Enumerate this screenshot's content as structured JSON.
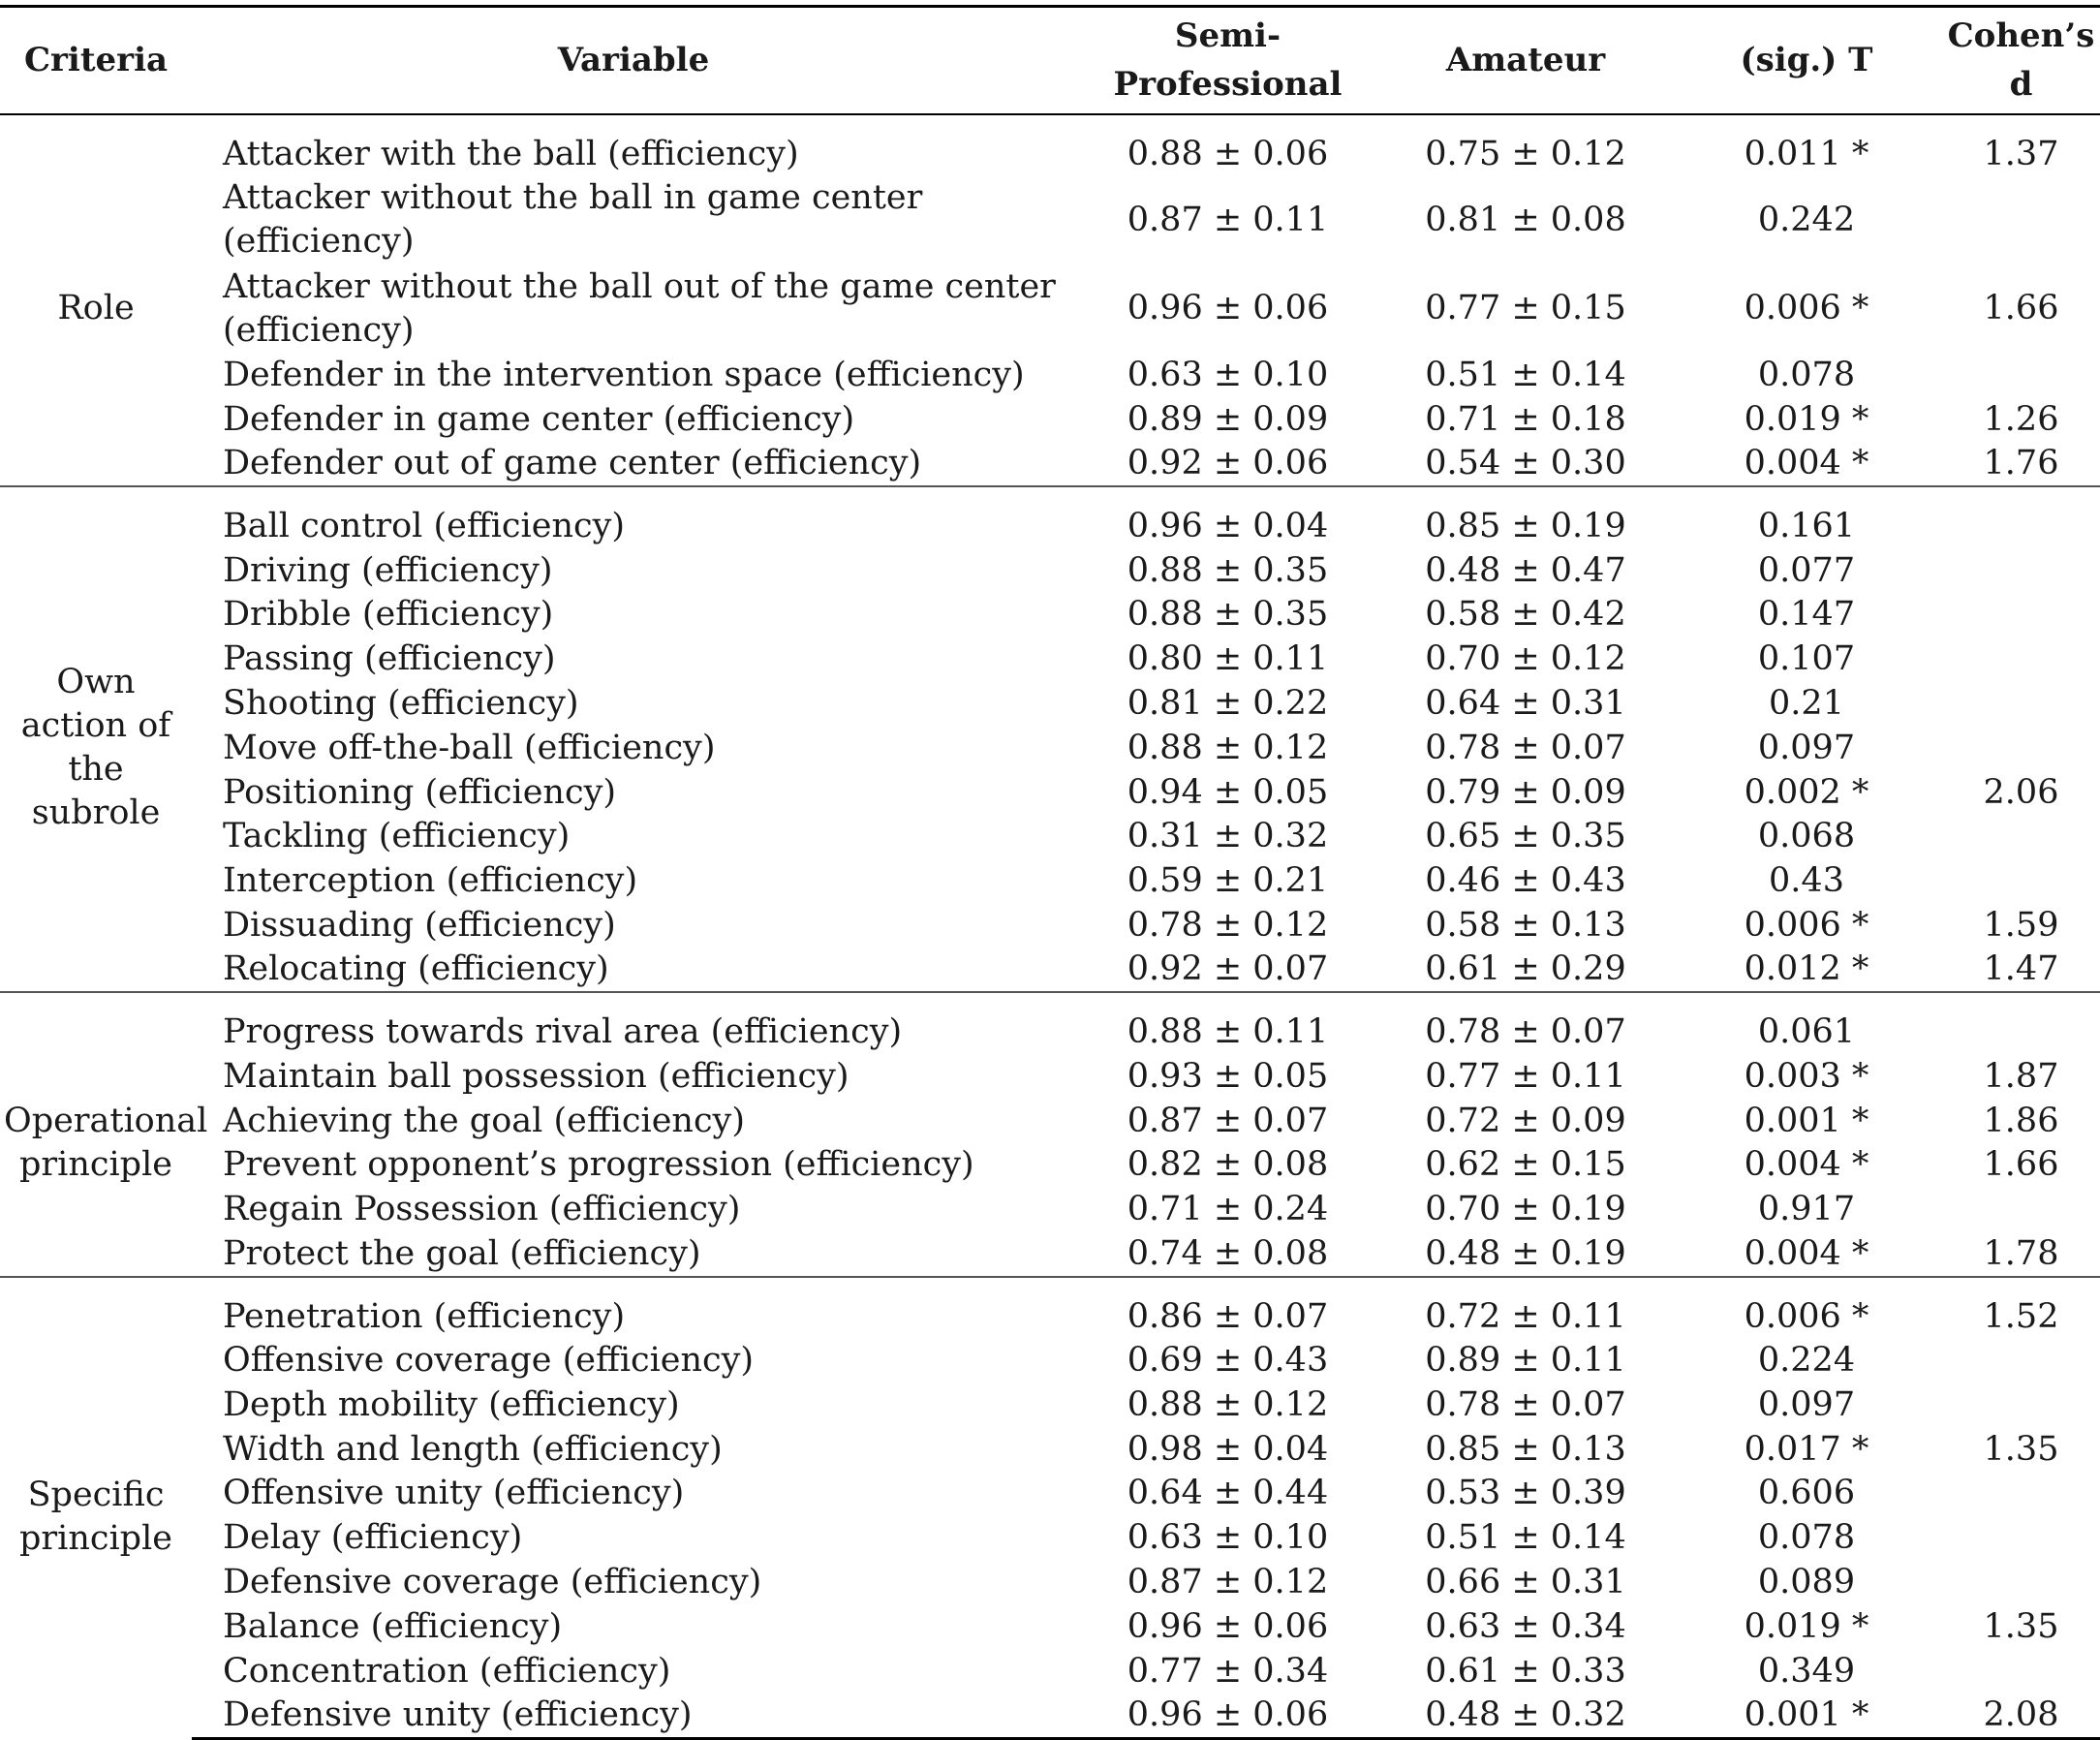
{
  "header": {
    "criteria": "Criteria",
    "variable": "Variable",
    "semi": "Semi-Professional",
    "amateur": "Amateur",
    "sig": "(sig.) T",
    "cohen": "Cohen’s d"
  },
  "groups": [
    {
      "criteria": "Role",
      "rows": [
        {
          "variable": "Attacker with the ball (efficiency)",
          "semi": "0.88 ± 0.06",
          "amateur": "0.75 ± 0.12",
          "sig": "0.011 *",
          "d": "1.37"
        },
        {
          "variable": "Attacker without the ball in game center (efficiency)",
          "semi": "0.87 ± 0.11",
          "amateur": "0.81 ± 0.08",
          "sig": "0.242",
          "d": ""
        },
        {
          "variable": "Attacker without the ball out of the game center (efficiency)",
          "semi": "0.96 ± 0.06",
          "amateur": "0.77 ± 0.15",
          "sig": "0.006 *",
          "d": "1.66"
        },
        {
          "variable": "Defender in the intervention space (efficiency)",
          "semi": "0.63 ± 0.10",
          "amateur": "0.51 ± 0.14",
          "sig": "0.078",
          "d": ""
        },
        {
          "variable": "Defender in game center (efficiency)",
          "semi": "0.89 ± 0.09",
          "amateur": "0.71 ± 0.18",
          "sig": "0.019 *",
          "d": "1.26"
        },
        {
          "variable": "Defender out of game center (efficiency)",
          "semi": "0.92 ± 0.06",
          "amateur": "0.54 ± 0.30",
          "sig": "0.004 *",
          "d": "1.76"
        }
      ]
    },
    {
      "criteria": "Own action of the subrole",
      "rows": [
        {
          "variable": "Ball control (efficiency)",
          "semi": "0.96 ± 0.04",
          "amateur": "0.85 ± 0.19",
          "sig": "0.161",
          "d": ""
        },
        {
          "variable": "Driving (efficiency)",
          "semi": "0.88 ± 0.35",
          "amateur": "0.48 ± 0.47",
          "sig": "0.077",
          "d": ""
        },
        {
          "variable": "Dribble (efficiency)",
          "semi": "0.88 ± 0.35",
          "amateur": "0.58 ± 0.42",
          "sig": "0.147",
          "d": ""
        },
        {
          "variable": "Passing (efficiency)",
          "semi": "0.80 ± 0.11",
          "amateur": "0.70 ± 0.12",
          "sig": "0.107",
          "d": ""
        },
        {
          "variable": "Shooting (efficiency)",
          "semi": "0.81 ± 0.22",
          "amateur": "0.64 ± 0.31",
          "sig": "0.21",
          "d": ""
        },
        {
          "variable": "Move off-the-ball (efficiency)",
          "semi": "0.88 ± 0.12",
          "amateur": "0.78 ± 0.07",
          "sig": "0.097",
          "d": ""
        },
        {
          "variable": "Positioning (efficiency)",
          "semi": "0.94 ± 0.05",
          "amateur": "0.79 ± 0.09",
          "sig": "0.002 *",
          "d": "2.06"
        },
        {
          "variable": "Tackling (efficiency)",
          "semi": "0.31 ± 0.32",
          "amateur": "0.65 ± 0.35",
          "sig": "0.068",
          "d": ""
        },
        {
          "variable": "Interception (efficiency)",
          "semi": "0.59 ± 0.21",
          "amateur": "0.46 ± 0.43",
          "sig": "0.43",
          "d": ""
        },
        {
          "variable": "Dissuading (efficiency)",
          "semi": "0.78 ± 0.12",
          "amateur": "0.58 ± 0.13",
          "sig": "0.006 *",
          "d": "1.59"
        },
        {
          "variable": "Relocating (efficiency)",
          "semi": "0.92 ± 0.07",
          "amateur": "0.61 ± 0.29",
          "sig": "0.012 *",
          "d": "1.47"
        }
      ]
    },
    {
      "criteria": "Operational principle",
      "rows": [
        {
          "variable": "Progress towards rival area (efficiency)",
          "semi": "0.88 ± 0.11",
          "amateur": "0.78 ± 0.07",
          "sig": "0.061",
          "d": ""
        },
        {
          "variable": "Maintain ball possession (efficiency)",
          "semi": "0.93 ± 0.05",
          "amateur": "0.77 ± 0.11",
          "sig": "0.003 *",
          "d": "1.87"
        },
        {
          "variable": "Achieving the goal (efficiency)",
          "semi": "0.87 ± 0.07",
          "amateur": "0.72 ± 0.09",
          "sig": "0.001 *",
          "d": "1.86"
        },
        {
          "variable": "Prevent opponent’s progression (efficiency)",
          "semi": "0.82 ± 0.08",
          "amateur": "0.62 ± 0.15",
          "sig": "0.004 *",
          "d": "1.66"
        },
        {
          "variable": "Regain Possession (efficiency)",
          "semi": "0.71 ± 0.24",
          "amateur": "0.70 ± 0.19",
          "sig": "0.917",
          "d": ""
        },
        {
          "variable": "Protect the goal (efficiency)",
          "semi": "0.74 ± 0.08",
          "amateur": "0.48 ± 0.19",
          "sig": "0.004 *",
          "d": "1.78"
        }
      ]
    },
    {
      "criteria": "Specific principle",
      "rows": [
        {
          "variable": "Penetration (efficiency)",
          "semi": "0.86 ± 0.07",
          "amateur": "0.72 ± 0.11",
          "sig": "0.006 *",
          "d": "1.52"
        },
        {
          "variable": "Offensive coverage (efficiency)",
          "semi": "0.69 ± 0.43",
          "amateur": "0.89 ± 0.11",
          "sig": "0.224",
          "d": ""
        },
        {
          "variable": "Depth mobility (efficiency)",
          "semi": "0.88 ± 0.12",
          "amateur": "0.78 ± 0.07",
          "sig": "0.097",
          "d": ""
        },
        {
          "variable": "Width and length (efficiency)",
          "semi": "0.98 ± 0.04",
          "amateur": "0.85 ± 0.13",
          "sig": "0.017 *",
          "d": "1.35"
        },
        {
          "variable": "Offensive unity (efficiency)",
          "semi": "0.64 ± 0.44",
          "amateur": "0.53 ± 0.39",
          "sig": "0.606",
          "d": ""
        },
        {
          "variable": "Delay (efficiency)",
          "semi": "0.63 ± 0.10",
          "amateur": "0.51 ± 0.14",
          "sig": "0.078",
          "d": ""
        },
        {
          "variable": "Defensive coverage (efficiency)",
          "semi": "0.87 ± 0.12",
          "amateur": "0.66 ± 0.31",
          "sig": "0.089",
          "d": ""
        },
        {
          "variable": "Balance (efficiency)",
          "semi": "0.96 ± 0.06",
          "amateur": "0.63 ± 0.34",
          "sig": "0.019 *",
          "d": "1.35"
        },
        {
          "variable": "Concentration (efficiency)",
          "semi": "0.77 ± 0.34",
          "amateur": "0.61 ± 0.33",
          "sig": "0.349",
          "d": ""
        },
        {
          "variable": "Defensive unity (efficiency)",
          "semi": "0.96 ± 0.06",
          "amateur": "0.48 ± 0.32",
          "sig": "0.001 *",
          "d": "2.08"
        }
      ]
    }
  ]
}
